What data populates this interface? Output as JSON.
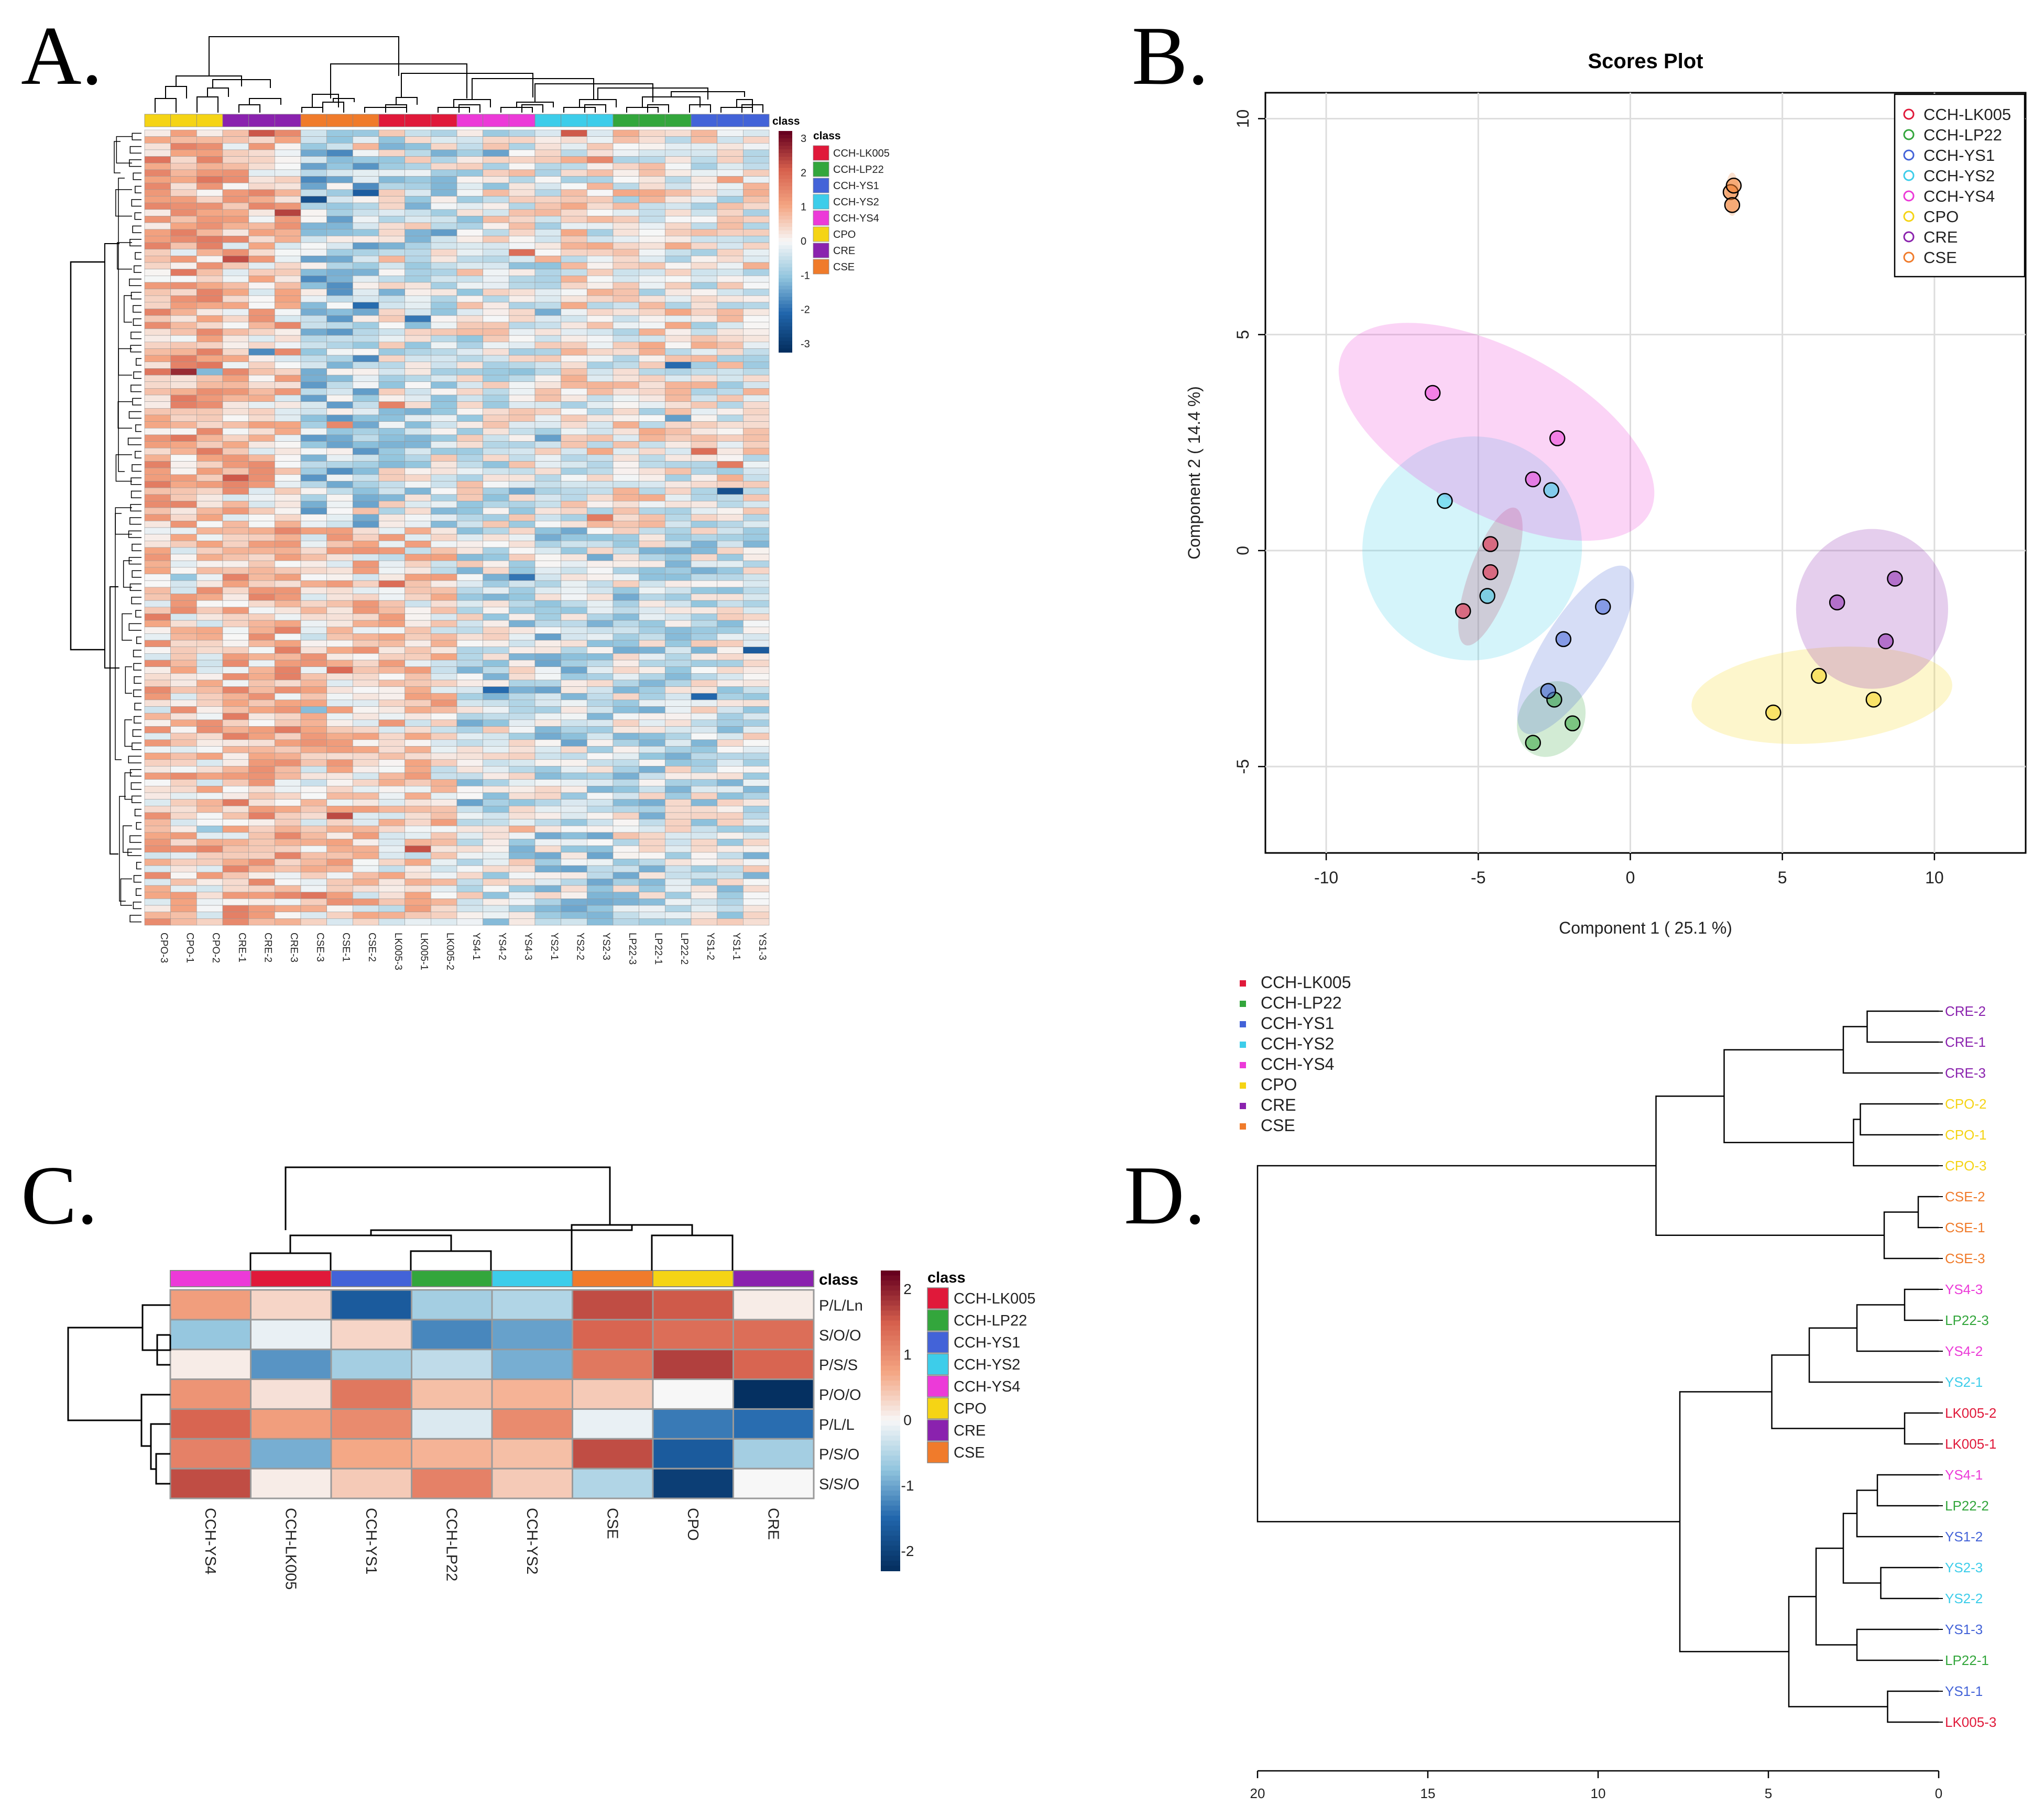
{
  "panel_labels": {
    "a": "A.",
    "b": "B.",
    "c": "C.",
    "d": "D."
  },
  "class_colors": {
    "CCH-LK005": "#e0193a",
    "CCH-LP22": "#33a63c",
    "CCH-YS1": "#4363d8",
    "CCH-YS2": "#3dcdea",
    "CCH-YS4": "#ec3ad8",
    "CPO": "#f5d415",
    "CRE": "#8a22ae",
    "CSE": "#f07b2b"
  },
  "chart_data": [
    {
      "id": "A",
      "type": "heatmap",
      "title": "",
      "columns": [
        "CPO-3",
        "CPO-1",
        "CPO-2",
        "CRE-1",
        "CRE-2",
        "CRE-3",
        "CSE-3",
        "CSE-1",
        "CSE-2",
        "LK005-3",
        "LK005-1",
        "LK005-2",
        "YS4-1",
        "YS4-2",
        "YS4-3",
        "YS2-1",
        "YS2-2",
        "YS2-3",
        "LP22-3",
        "LP22-1",
        "LP22-2",
        "YS1-2",
        "YS1-1",
        "YS1-3"
      ],
      "column_classes": [
        "CPO",
        "CPO",
        "CPO",
        "CRE",
        "CRE",
        "CRE",
        "CSE",
        "CSE",
        "CSE",
        "CCH-LK005",
        "CCH-LK005",
        "CCH-LK005",
        "CCH-YS4",
        "CCH-YS4",
        "CCH-YS4",
        "CCH-YS2",
        "CCH-YS2",
        "CCH-YS2",
        "CCH-LP22",
        "CCH-LP22",
        "CCH-LP22",
        "CCH-YS1",
        "CCH-YS1",
        "CCH-YS1"
      ],
      "row_count": 120,
      "annotation_label": "class",
      "legend_title": "class",
      "legend": [
        "CCH-LK005",
        "CCH-LP22",
        "CCH-YS1",
        "CCH-YS2",
        "CCH-YS4",
        "CPO",
        "CRE",
        "CSE"
      ],
      "scale_ticks": [
        "3",
        "2",
        "1",
        "0",
        "-1",
        "-2",
        "-3"
      ],
      "zlim": [
        -3,
        3
      ]
    },
    {
      "id": "B",
      "type": "scatter",
      "title": "Scores Plot",
      "xlabel": "Component 1 ( 25.1 %)",
      "ylabel": "Component 2 ( 14.4 %)",
      "xlim": [
        -12,
        13
      ],
      "ylim": [
        -7,
        10.6
      ],
      "xticks": [
        -10,
        -5,
        0,
        5,
        10
      ],
      "yticks": [
        -5,
        0,
        5,
        10
      ],
      "legend_position": "top-right",
      "series": [
        {
          "name": "CCH-LK005",
          "points": [
            [
              -4.6,
              0.15
            ],
            [
              -4.6,
              -0.5
            ],
            [
              -5.5,
              -1.4
            ]
          ],
          "ellipse": {
            "cx": -4.6,
            "cy": -0.6,
            "rx": 2.4,
            "ry": 0.5,
            "angle": 70
          }
        },
        {
          "name": "CCH-LP22",
          "points": [
            [
              -2.5,
              -3.45
            ],
            [
              -1.9,
              -4.0
            ],
            [
              -3.2,
              -4.45
            ]
          ],
          "ellipse": {
            "cx": -2.6,
            "cy": -3.9,
            "rx": 1.3,
            "ry": 0.75,
            "angle": 60
          }
        },
        {
          "name": "CCH-YS1",
          "points": [
            [
              -0.9,
              -1.3
            ],
            [
              -2.2,
              -2.05
            ],
            [
              -2.7,
              -3.25
            ]
          ],
          "ellipse": {
            "cx": -1.8,
            "cy": -2.3,
            "rx": 3.2,
            "ry": 0.75,
            "angle": 58
          }
        },
        {
          "name": "CCH-YS2",
          "points": [
            [
              -6.1,
              1.15
            ],
            [
              -2.6,
              1.4
            ],
            [
              -4.7,
              -1.05
            ]
          ],
          "ellipse": {
            "cx": -5.2,
            "cy": 0.05,
            "rx": 3.6,
            "ry": 2.6,
            "angle": -20
          }
        },
        {
          "name": "CCH-YS4",
          "points": [
            [
              -6.5,
              3.65
            ],
            [
              -2.4,
              2.6
            ],
            [
              -3.2,
              1.65
            ]
          ],
          "ellipse": {
            "cx": -4.4,
            "cy": 2.75,
            "rx": 5.7,
            "ry": 1.9,
            "angle": -28
          }
        },
        {
          "name": "CPO",
          "points": [
            [
              4.7,
              -3.75
            ],
            [
              6.2,
              -2.9
            ],
            [
              8.0,
              -3.45
            ]
          ],
          "ellipse": {
            "cx": 6.3,
            "cy": -3.35,
            "rx": 4.3,
            "ry": 1.1,
            "angle": 5
          }
        },
        {
          "name": "CRE",
          "points": [
            [
              8.7,
              -0.65
            ],
            [
              6.8,
              -1.2
            ],
            [
              8.4,
              -2.1
            ]
          ],
          "ellipse": {
            "cx": 7.95,
            "cy": -1.35,
            "rx": 2.5,
            "ry": 1.85,
            "angle": 0
          }
        },
        {
          "name": "CSE",
          "points": [
            [
              3.3,
              8.3
            ],
            [
              3.4,
              8.45
            ],
            [
              3.35,
              8.0
            ]
          ],
          "ellipse": {
            "cx": 3.35,
            "cy": 8.25,
            "rx": 0.22,
            "ry": 0.5,
            "angle": 0
          }
        }
      ]
    },
    {
      "id": "C",
      "type": "heatmap",
      "columns": [
        "CCH-YS4",
        "CCH-LK005",
        "CCH-YS1",
        "CCH-LP22",
        "CCH-YS2",
        "CSE",
        "CPO",
        "CRE"
      ],
      "rows": [
        "P/L/Ln",
        "S/O/O",
        "P/S/S",
        "P/O/O",
        "P/L/L",
        "P/S/O",
        "S/S/O"
      ],
      "values": [
        [
          0.8,
          0.3,
          -1.6,
          -0.6,
          -0.5,
          1.6,
          1.5,
          0.1
        ],
        [
          -0.7,
          -0.1,
          0.3,
          -1.2,
          -1.0,
          1.4,
          1.3,
          1.3
        ],
        [
          0.1,
          -1.1,
          -0.6,
          -0.4,
          -0.9,
          1.2,
          1.7,
          1.4
        ],
        [
          0.9,
          0.2,
          1.2,
          0.5,
          0.6,
          0.4,
          0.0,
          -2.2
        ],
        [
          1.4,
          0.8,
          1.0,
          -0.2,
          1.0,
          -0.1,
          -1.3,
          -1.4
        ],
        [
          1.1,
          -0.9,
          0.7,
          0.6,
          0.5,
          1.6,
          -1.6,
          -0.6
        ],
        [
          1.6,
          0.1,
          0.4,
          1.1,
          0.4,
          -0.5,
          -2.0,
          0.0
        ]
      ],
      "annotation_label": "class",
      "legend_title": "class",
      "legend": [
        "CCH-LK005",
        "CCH-LP22",
        "CCH-YS1",
        "CCH-YS2",
        "CCH-YS4",
        "CPO",
        "CRE",
        "CSE"
      ],
      "scale_ticks": [
        "2",
        "1",
        "0",
        "-1",
        "-2"
      ],
      "zlim": [
        -2.2,
        2.2
      ]
    },
    {
      "id": "D",
      "type": "dendrogram",
      "legend": [
        "CCH-LK005",
        "CCH-LP22",
        "CCH-YS1",
        "CCH-YS2",
        "CCH-YS4",
        "CPO",
        "CRE",
        "CSE"
      ],
      "leaves": [
        {
          "label": "CRE-2",
          "class": "CRE"
        },
        {
          "label": "CRE-1",
          "class": "CRE"
        },
        {
          "label": "CRE-3",
          "class": "CRE"
        },
        {
          "label": "CPO-2",
          "class": "CPO"
        },
        {
          "label": "CPO-1",
          "class": "CPO"
        },
        {
          "label": "CPO-3",
          "class": "CPO"
        },
        {
          "label": "CSE-2",
          "class": "CSE"
        },
        {
          "label": "CSE-1",
          "class": "CSE"
        },
        {
          "label": "CSE-3",
          "class": "CSE"
        },
        {
          "label": "YS4-3",
          "class": "CCH-YS4"
        },
        {
          "label": "LP22-3",
          "class": "CCH-LP22"
        },
        {
          "label": "YS4-2",
          "class": "CCH-YS4"
        },
        {
          "label": "YS2-1",
          "class": "CCH-YS2"
        },
        {
          "label": "LK005-2",
          "class": "CCH-LK005"
        },
        {
          "label": "LK005-1",
          "class": "CCH-LK005"
        },
        {
          "label": "YS4-1",
          "class": "CCH-YS4"
        },
        {
          "label": "LP22-2",
          "class": "CCH-LP22"
        },
        {
          "label": "YS1-2",
          "class": "CCH-YS1"
        },
        {
          "label": "YS2-3",
          "class": "CCH-YS2"
        },
        {
          "label": "YS2-2",
          "class": "CCH-YS2"
        },
        {
          "label": "YS1-3",
          "class": "CCH-YS1"
        },
        {
          "label": "LP22-1",
          "class": "CCH-LP22"
        },
        {
          "label": "YS1-1",
          "class": "CCH-YS1"
        },
        {
          "label": "LK005-3",
          "class": "CCH-LK005"
        }
      ],
      "xlim": [
        20,
        0
      ],
      "xticks": [
        20,
        15,
        10,
        5,
        0
      ]
    }
  ]
}
